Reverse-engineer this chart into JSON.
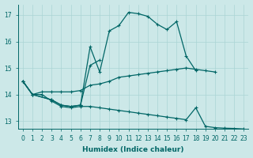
{
  "xlabel": "Humidex (Indice chaleur)",
  "xlim": [
    -0.5,
    23.5
  ],
  "ylim": [
    12.7,
    17.4
  ],
  "yticks": [
    13,
    14,
    15,
    16,
    17
  ],
  "xticks": [
    0,
    1,
    2,
    3,
    4,
    5,
    6,
    7,
    8,
    9,
    10,
    11,
    12,
    13,
    14,
    15,
    16,
    17,
    18,
    19,
    20,
    21,
    22,
    23
  ],
  "bg_color": "#cce8e8",
  "line_color": "#006666",
  "grid_color": "#aad4d4",
  "lines": [
    {
      "x": [
        0,
        1,
        3,
        4,
        5,
        6,
        7,
        8,
        9,
        10,
        11,
        12,
        13,
        14,
        15,
        16,
        17,
        18
      ],
      "y": [
        14.5,
        14.0,
        13.8,
        13.6,
        13.55,
        13.6,
        15.8,
        14.85,
        16.4,
        16.6,
        17.1,
        17.05,
        16.95,
        16.65,
        16.45,
        16.75,
        15.45,
        14.9
      ]
    },
    {
      "x": [
        0,
        1,
        3,
        4,
        5,
        6,
        7,
        8
      ],
      "y": [
        14.5,
        14.0,
        13.8,
        13.6,
        13.55,
        13.6,
        15.1,
        15.3
      ]
    },
    {
      "x": [
        0,
        1,
        2,
        3,
        4,
        5,
        6,
        7,
        8,
        9,
        10,
        11,
        12,
        13,
        14,
        15,
        16,
        17,
        18,
        19,
        20
      ],
      "y": [
        14.5,
        14.0,
        14.1,
        14.1,
        14.1,
        14.1,
        14.15,
        14.35,
        14.4,
        14.5,
        14.65,
        14.7,
        14.75,
        14.8,
        14.85,
        14.9,
        14.95,
        15.0,
        14.95,
        14.9,
        14.85
      ]
    },
    {
      "x": [
        0,
        1,
        2,
        3,
        4,
        5,
        6,
        7,
        8,
        9,
        10,
        11,
        12,
        13,
        14,
        15,
        16,
        17,
        18,
        19,
        20,
        21,
        22,
        23
      ],
      "y": [
        14.5,
        14.0,
        14.0,
        13.75,
        13.55,
        13.5,
        13.55,
        13.55,
        13.5,
        13.45,
        13.4,
        13.35,
        13.3,
        13.25,
        13.2,
        13.15,
        13.1,
        13.05,
        13.5,
        12.8,
        12.75,
        12.73,
        12.72,
        12.7
      ]
    }
  ]
}
